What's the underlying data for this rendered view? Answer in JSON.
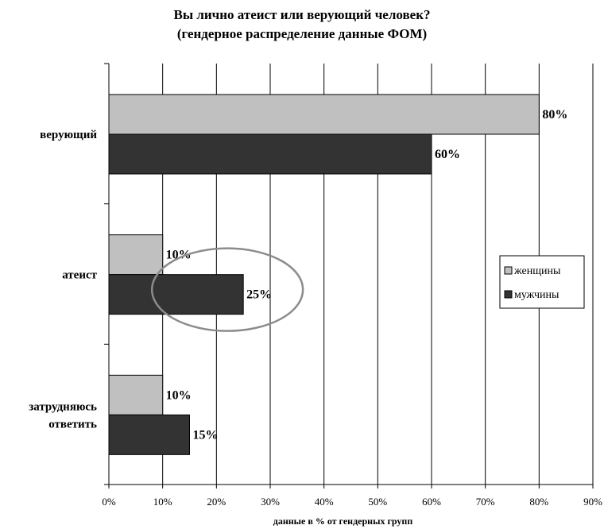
{
  "chart_data": {
    "type": "bar",
    "orientation": "horizontal",
    "title": [
      "Вы лично атеист или верующий человек?",
      "(гендерное распределение данные ФОМ)"
    ],
    "xlabel": "данные в % от гендерных групп",
    "ylabel": "",
    "xlim": [
      0,
      90
    ],
    "x_ticks": [
      "0%",
      "10%",
      "20%",
      "30%",
      "40%",
      "50%",
      "60%",
      "70%",
      "80%",
      "90%"
    ],
    "grid": "vertical",
    "categories": [
      [
        "верующий"
      ],
      [
        "атеист"
      ],
      [
        "затрудняюсь",
        "ответить"
      ]
    ],
    "series": [
      {
        "name": "женщины",
        "color": "#c0c0c0",
        "values": [
          80,
          10,
          10
        ],
        "labels": [
          "80%",
          "10%",
          "10%"
        ]
      },
      {
        "name": "мужчины",
        "color": "#333333",
        "values": [
          60,
          25,
          15
        ],
        "labels": [
          "60%",
          "25%",
          "15%"
        ]
      }
    ],
    "legend": "right",
    "annotation": {
      "shape": "ellipse",
      "highlight": {
        "category_index": 1,
        "series_index": 1
      }
    }
  }
}
